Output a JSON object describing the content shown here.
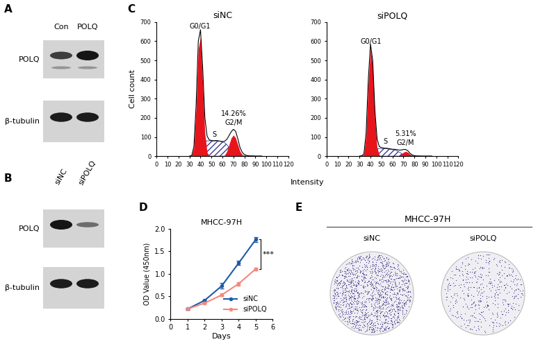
{
  "panels": [
    {
      "panel": "A",
      "type": "western_blot",
      "lanes": [
        "Con",
        "POLQ"
      ],
      "rows": [
        "POLQ",
        "β-tubulin"
      ]
    },
    {
      "panel": "B",
      "type": "western_blot",
      "lanes": [
        "siNC",
        "siPOLQ"
      ],
      "rows": [
        "POLQ",
        "β-tubulin"
      ]
    },
    {
      "panel": "E",
      "type": "colony_image",
      "title": "MHCC-97H",
      "samples": [
        "siNC",
        "siPOLQ"
      ]
    }
  ],
  "chart_data": [
    {
      "panel": "C",
      "type": "flow_histogram",
      "title": "siNC",
      "xlabel": "Intensity",
      "ylabel": "Cell count",
      "x": [
        30,
        32,
        34,
        36,
        38,
        40,
        42,
        44,
        46,
        48,
        50,
        52,
        54,
        56,
        58,
        60,
        62,
        64,
        66,
        68,
        70,
        72,
        74,
        76,
        78,
        80,
        82,
        84,
        86,
        88,
        90,
        92,
        94,
        96
      ],
      "series": [
        {
          "type": "line",
          "color": "#000000",
          "values": [
            0,
            3,
            50,
            265,
            600,
            660,
            460,
            200,
            105,
            85,
            82,
            80,
            82,
            80,
            78,
            76,
            78,
            88,
            108,
            128,
            140,
            130,
            90,
            45,
            20,
            8,
            4,
            2,
            1,
            1,
            0,
            0,
            0,
            0
          ]
        },
        {
          "name": "G0/G1",
          "type": "area",
          "color": "#e8141c",
          "values": [
            0,
            2,
            45,
            250,
            560,
            620,
            380,
            120,
            20,
            2,
            0,
            0,
            0,
            0,
            0,
            0,
            0,
            0,
            0,
            0,
            0,
            0,
            0,
            0,
            0,
            0,
            0,
            0,
            0,
            0,
            0,
            0,
            0,
            0
          ]
        },
        {
          "name": "S",
          "type": "hatched_area",
          "color": "#3a3a9a",
          "values": [
            0,
            0,
            5,
            15,
            35,
            55,
            70,
            78,
            80,
            80,
            80,
            80,
            80,
            80,
            78,
            75,
            70,
            60,
            45,
            30,
            15,
            6,
            2,
            0,
            0,
            0,
            0,
            0,
            0,
            0,
            0,
            0,
            0,
            0
          ]
        },
        {
          "name": "G2/M",
          "note": "14.26%",
          "type": "area",
          "color": "#e8141c",
          "values": [
            0,
            0,
            0,
            0,
            0,
            0,
            0,
            0,
            0,
            0,
            0,
            0,
            0,
            0,
            0,
            0,
            5,
            25,
            60,
            95,
            110,
            95,
            60,
            25,
            8,
            2,
            0,
            0,
            0,
            0,
            0,
            0,
            0,
            0
          ]
        }
      ],
      "xlim": [
        0,
        120
      ],
      "xticks": [
        0,
        10,
        20,
        30,
        40,
        50,
        60,
        70,
        80,
        90,
        100,
        110,
        120
      ],
      "ylim": [
        0,
        700
      ],
      "yticks": [
        0,
        100,
        200,
        300,
        400,
        500,
        600,
        700
      ]
    },
    {
      "type": "flow_histogram",
      "title": "siPOLQ",
      "x": [
        30,
        32,
        34,
        36,
        38,
        40,
        42,
        44,
        46,
        48,
        50,
        52,
        54,
        56,
        58,
        60,
        62,
        64,
        66,
        68,
        70,
        72,
        74,
        76,
        78,
        80,
        82,
        84,
        86,
        88,
        90,
        92,
        94,
        96
      ],
      "series": [
        {
          "type": "line",
          "color": "#000000",
          "values": [
            0,
            2,
            12,
            120,
            400,
            585,
            500,
            240,
            90,
            50,
            45,
            42,
            42,
            40,
            38,
            36,
            36,
            34,
            32,
            32,
            35,
            35,
            28,
            15,
            6,
            3,
            1,
            1,
            0,
            0,
            0,
            0,
            0,
            0
          ]
        },
        {
          "name": "G0/G1",
          "type": "area",
          "color": "#e8141c",
          "values": [
            0,
            0,
            10,
            110,
            380,
            560,
            470,
            200,
            45,
            6,
            0,
            0,
            0,
            0,
            0,
            0,
            0,
            0,
            0,
            0,
            0,
            0,
            0,
            0,
            0,
            0,
            0,
            0,
            0,
            0,
            0,
            0,
            0,
            0
          ]
        },
        {
          "name": "S",
          "type": "hatched_area",
          "color": "#3a3a9a",
          "values": [
            0,
            0,
            1,
            4,
            8,
            12,
            25,
            35,
            38,
            40,
            40,
            40,
            40,
            38,
            36,
            34,
            32,
            28,
            22,
            15,
            8,
            3,
            1,
            0,
            0,
            0,
            0,
            0,
            0,
            0,
            0,
            0,
            0,
            0
          ]
        },
        {
          "name": "G2/M",
          "note": "5.31%",
          "type": "area",
          "color": "#e8141c",
          "values": [
            0,
            0,
            0,
            0,
            0,
            0,
            0,
            0,
            0,
            0,
            0,
            0,
            0,
            0,
            0,
            0,
            0,
            0,
            3,
            10,
            20,
            25,
            20,
            10,
            3,
            1,
            0,
            0,
            0,
            0,
            0,
            0,
            0,
            0
          ]
        }
      ],
      "xlim": [
        0,
        120
      ],
      "xticks": [
        0,
        10,
        20,
        30,
        40,
        50,
        60,
        70,
        80,
        90,
        100,
        110,
        120
      ],
      "ylim": [
        0,
        700
      ],
      "yticks": [
        0,
        100,
        200,
        300,
        400,
        500,
        600,
        700
      ]
    },
    {
      "panel": "D",
      "type": "line",
      "title": "MHCC-97H",
      "xlabel": "Days",
      "ylabel": "OD Value (450nm)",
      "x": [
        1,
        2,
        3,
        4,
        5
      ],
      "series": [
        {
          "name": "siNC",
          "color": "#1f5aa6",
          "marker": "o",
          "values": [
            0.22,
            0.41,
            0.73,
            1.24,
            1.76
          ],
          "errors": [
            0.02,
            0.02,
            0.06,
            0.05,
            0.05
          ]
        },
        {
          "name": "siPOLQ",
          "color": "#f4877f",
          "marker": "o",
          "values": [
            0.22,
            0.35,
            0.53,
            0.78,
            1.11
          ],
          "errors": [
            0.01,
            0.02,
            0.03,
            0.04,
            0.03
          ]
        }
      ],
      "xlim": [
        0,
        6
      ],
      "xticks": [
        0,
        1,
        2,
        3,
        4,
        5,
        6
      ],
      "ylim": [
        0,
        2
      ],
      "yticks": [
        {
          "value": 0,
          "label": "0.0"
        },
        0.5,
        {
          "value": 1,
          "label": "1.0"
        },
        1.5,
        {
          "value": 2,
          "label": "2.0"
        }
      ],
      "legend": "lower right",
      "annotations": [
        "***"
      ]
    }
  ]
}
